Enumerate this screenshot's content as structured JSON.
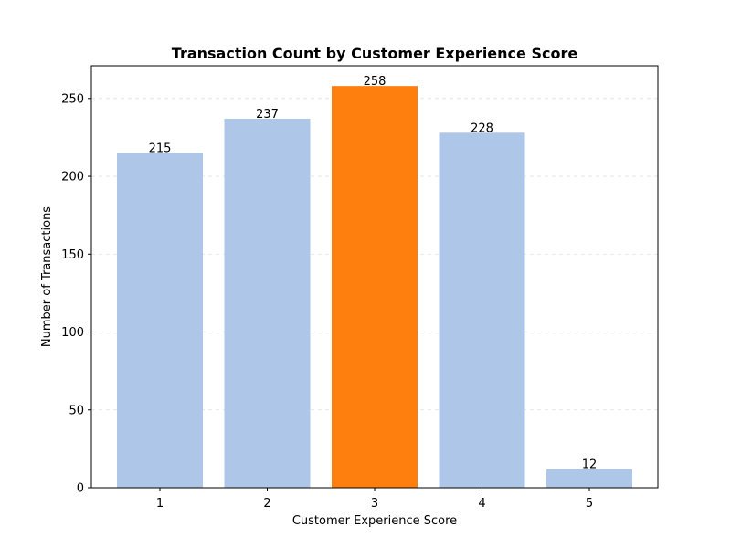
{
  "chart_data": {
    "type": "bar",
    "title": "Transaction Count by Customer Experience Score",
    "xlabel": "Customer Experience Score",
    "ylabel": "Number of Transactions",
    "categories": [
      "1",
      "2",
      "3",
      "4",
      "5"
    ],
    "values": [
      215,
      237,
      258,
      228,
      12
    ],
    "data_labels": [
      "215",
      "237",
      "258",
      "228",
      "12"
    ],
    "ylim": [
      0,
      271
    ],
    "yticks": [
      0,
      50,
      100,
      150,
      200,
      250
    ],
    "ytick_labels": [
      "0",
      "50",
      "100",
      "150",
      "200",
      "250"
    ],
    "grid": "y-dashed",
    "highlight_index": 2,
    "colors": {
      "default": "#aec7e8",
      "highlight": "#ff7f0e"
    }
  }
}
